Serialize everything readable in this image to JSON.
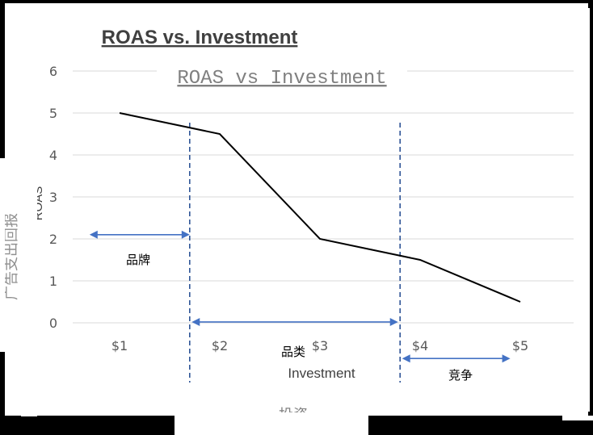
{
  "chart_data": {
    "type": "line",
    "title": "ROAS vs. Investment",
    "subtitle": "ROAS vs Investment",
    "xlabel": "Investment",
    "xlabel_cn": "投资",
    "ylabel": "ROAS",
    "ylabel_cn": "广告支出回报",
    "categories": [
      "$1",
      "$2",
      "$3",
      "$4",
      "$5"
    ],
    "x": [
      1,
      2,
      3,
      4,
      5
    ],
    "series": [
      {
        "values": [
          5,
          4.5,
          2,
          1.5,
          0.5
        ]
      }
    ],
    "ylim": [
      0,
      6
    ],
    "yticks": [
      0,
      1,
      2,
      3,
      4,
      5,
      6
    ],
    "grid": true,
    "dividers": [
      1.7,
      3.8
    ],
    "annotations": [
      {
        "label": "品牌",
        "from": 0.7,
        "to": 1.7,
        "y": 2.1
      },
      {
        "label": "品类",
        "from": 1.72,
        "to": 3.78,
        "y": 0.02
      },
      {
        "label": "竞争",
        "from": 3.82,
        "to": 4.9,
        "y": -0.85
      }
    ],
    "colors": {
      "line": "#000000",
      "divider": "#2F5597",
      "arrow": "#4472C4",
      "grid": "#D9D9D9"
    }
  }
}
